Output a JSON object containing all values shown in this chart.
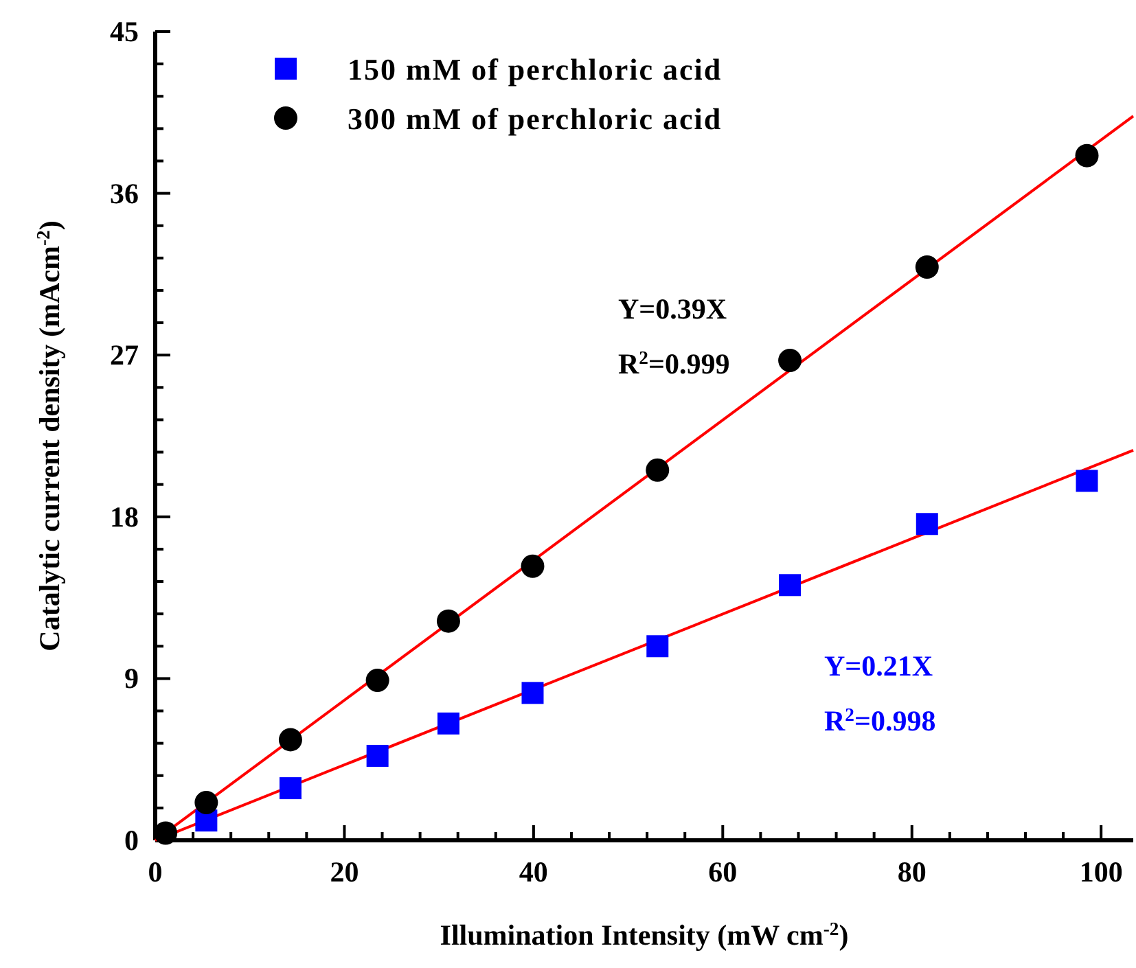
{
  "chart_data": {
    "type": "scatter",
    "xlabel": "Illumination Intensity (mW cm$^{-2}$)",
    "ylabel": "Catalytic current density (mAcm$^{-2}$)",
    "xlim": [
      0,
      103.4
    ],
    "ylim": [
      0,
      45
    ],
    "xticks": [
      0,
      {
        "value": 4,
        "label": null
      },
      {
        "value": 8,
        "label": null
      },
      {
        "value": 12,
        "label": null
      },
      {
        "value": 16,
        "label": null
      },
      20,
      {
        "value": 24,
        "label": null
      },
      {
        "value": 28,
        "label": null
      },
      {
        "value": 32,
        "label": null
      },
      {
        "value": 36,
        "label": null
      },
      40,
      {
        "value": 44,
        "label": null
      },
      {
        "value": 48,
        "label": null
      },
      {
        "value": 52,
        "label": null
      },
      {
        "value": 56,
        "label": null
      },
      60,
      {
        "value": 64,
        "label": null
      },
      {
        "value": 68,
        "label": null
      },
      {
        "value": 72,
        "label": null
      },
      {
        "value": 76,
        "label": null
      },
      80,
      {
        "value": 84,
        "label": null
      },
      {
        "value": 88,
        "label": null
      },
      {
        "value": 92,
        "label": null
      },
      {
        "value": 96,
        "label": null
      },
      100
    ],
    "yticks": [
      0,
      {
        "value": 1.8,
        "label": null
      },
      {
        "value": 3.6,
        "label": null
      },
      {
        "value": 5.4,
        "label": null
      },
      {
        "value": 7.2,
        "label": null
      },
      9,
      {
        "value": 10.8,
        "label": null
      },
      {
        "value": 12.6,
        "label": null
      },
      {
        "value": 14.4,
        "label": null
      },
      {
        "value": 16.2,
        "label": null
      },
      18,
      {
        "value": 19.8,
        "label": null
      },
      {
        "value": 21.6,
        "label": null
      },
      {
        "value": 23.4,
        "label": null
      },
      {
        "value": 25.2,
        "label": null
      },
      27,
      {
        "value": 28.8,
        "label": null
      },
      {
        "value": 30.6,
        "label": null
      },
      {
        "value": 32.4,
        "label": null
      },
      {
        "value": 34.2,
        "label": null
      },
      36,
      {
        "value": 37.8,
        "label": null
      },
      {
        "value": 39.6,
        "label": null
      },
      {
        "value": 41.4,
        "label": null
      },
      {
        "value": 43.2,
        "label": null
      },
      45
    ],
    "legend": "top left",
    "grid": false,
    "series": [
      {
        "name": "150 mM of perchloric acid",
        "color": "#0000ff",
        "marker": "square",
        "x": [
          5.4,
          14.3,
          23.5,
          31.0,
          39.9,
          53.1,
          67.1,
          81.6,
          98.5
        ],
        "values": [
          1.1,
          2.9,
          4.7,
          6.5,
          8.2,
          10.8,
          14.2,
          17.6,
          20.0
        ]
      },
      {
        "name": "300 mM of perchloric acid",
        "color": "#000000",
        "marker": "circle",
        "x": [
          1.1,
          5.4,
          14.3,
          23.5,
          31.0,
          39.9,
          53.1,
          67.1,
          81.6,
          98.5
        ],
        "values": [
          0.4,
          2.1,
          5.6,
          8.9,
          12.2,
          15.25,
          20.6,
          26.7,
          31.9,
          38.1
        ]
      },
      {
        "type": "line",
        "color": "#ff0000",
        "marker": "none",
        "x": [
          0,
          103.4
        ],
        "values": [
          0,
          40.3
        ]
      },
      {
        "type": "line",
        "color": "#ff0000",
        "marker": "none",
        "x": [
          0,
          103.4
        ],
        "values": [
          0,
          21.7
        ]
      }
    ],
    "annotations": [
      "Y=0.39X",
      "R$^{2}$=0.999",
      "Y=0.21X",
      "R$^{2}$=0.998"
    ]
  }
}
